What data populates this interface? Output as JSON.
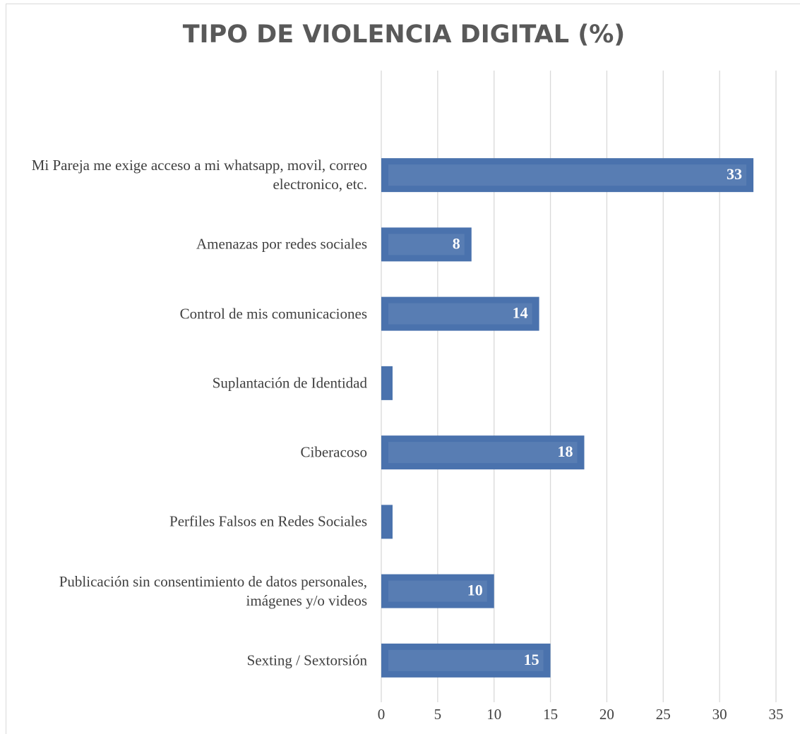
{
  "chart_data": {
    "type": "barh",
    "title": "TIPO DE VIOLENCIA DIGITAL (%)",
    "categories": [
      "Mi Pareja me exige acceso a mi whatsapp, movil, correo electronico, etc.",
      "Amenazas por redes sociales",
      "Control de mis comunicaciones",
      "Suplantación de Identidad",
      "Ciberacoso",
      "Perfiles Falsos en Redes Sociales",
      "Publicación sin consentimiento de datos personales, imágenes y/o videos",
      "Sexting / Sextorsión"
    ],
    "values": [
      33,
      8,
      14,
      1,
      18,
      1,
      10,
      15
    ],
    "value_labels": [
      "33",
      "8",
      "14",
      null,
      "18",
      null,
      "10",
      "15"
    ],
    "color": "#4a72ad",
    "xlim": [
      0,
      35
    ],
    "xticks": [
      0,
      5,
      10,
      15,
      20,
      25,
      30,
      35
    ],
    "grid": true
  }
}
